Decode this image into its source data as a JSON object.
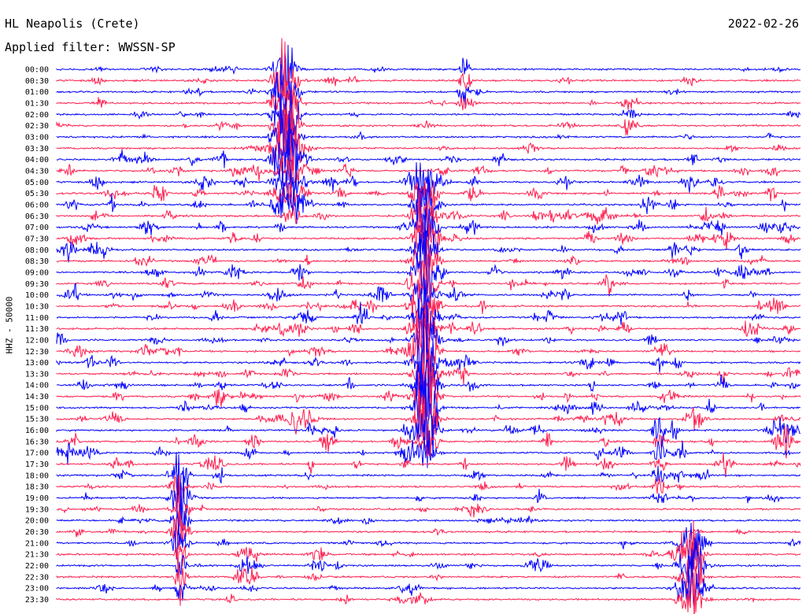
{
  "header": {
    "station": "HL Neapolis (Crete)",
    "date": "2022-02-26",
    "filter": "Applied filter: WWSSN-SP"
  },
  "channel_label": "HHZ - 50000",
  "trace_colors": [
    "#0000ff",
    "#ff1f4f"
  ],
  "time_labels": [
    "00:00",
    "00:30",
    "01:00",
    "01:30",
    "02:00",
    "02:30",
    "03:00",
    "03:30",
    "04:00",
    "04:30",
    "05:00",
    "05:30",
    "06:00",
    "06:30",
    "07:00",
    "07:30",
    "08:00",
    "08:30",
    "09:00",
    "09:30",
    "10:00",
    "10:30",
    "11:00",
    "11:30",
    "12:00",
    "12:30",
    "13:00",
    "13:30",
    "14:00",
    "14:30",
    "15:00",
    "15:30",
    "16:00",
    "16:30",
    "17:00",
    "17:30",
    "18:00",
    "18:30",
    "19:00",
    "19:30",
    "20:00",
    "20:30",
    "21:00",
    "21:30",
    "22:00",
    "22:30",
    "23:00",
    "23:30"
  ]
}
